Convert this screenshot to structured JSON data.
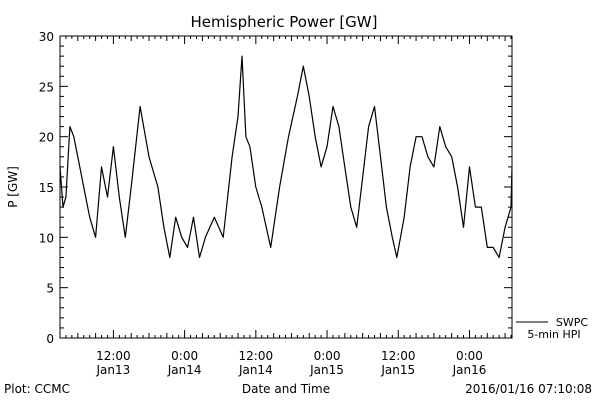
{
  "chart_data": {
    "type": "line",
    "title": "Hemispheric Power [GW]",
    "ylabel": "P [GW]",
    "xlabel": "Date and Time",
    "ylim": [
      0,
      30
    ],
    "xlim": [
      "2016-01-13T03:00",
      "2016-01-16T07:10"
    ],
    "y_ticks": [
      0,
      5,
      10,
      15,
      20,
      25,
      30
    ],
    "x_ticks": [
      {
        "x": "2016-01-13T12:00",
        "line1": "12:00",
        "line2": "Jan13"
      },
      {
        "x": "2016-01-14T00:00",
        "line1": "0:00",
        "line2": "Jan14"
      },
      {
        "x": "2016-01-14T12:00",
        "line1": "12:00",
        "line2": "Jan14"
      },
      {
        "x": "2016-01-15T00:00",
        "line1": "0:00",
        "line2": "Jan15"
      },
      {
        "x": "2016-01-15T12:00",
        "line1": "12:00",
        "line2": "Jan15"
      },
      {
        "x": "2016-01-16T00:00",
        "line1": "0:00",
        "line2": "Jan16"
      }
    ],
    "legend": {
      "placement": "bottom-right, outside plot",
      "entries": [
        "SWPC",
        "5-min HPI"
      ]
    },
    "grid": false,
    "series": [
      {
        "name": "SWPC",
        "color": "#000000",
        "points": [
          [
            "2016-01-13T03:00",
            17
          ],
          [
            "2016-01-13T03:30",
            13
          ],
          [
            "2016-01-13T04:00",
            14
          ],
          [
            "2016-01-13T04:40",
            21
          ],
          [
            "2016-01-13T05:20",
            20
          ],
          [
            "2016-01-13T06:00",
            18
          ],
          [
            "2016-01-13T07:00",
            15
          ],
          [
            "2016-01-13T08:00",
            12
          ],
          [
            "2016-01-13T09:00",
            10
          ],
          [
            "2016-01-13T10:00",
            17
          ],
          [
            "2016-01-13T11:00",
            14
          ],
          [
            "2016-01-13T12:00",
            19
          ],
          [
            "2016-01-13T13:00",
            14
          ],
          [
            "2016-01-13T14:00",
            10
          ],
          [
            "2016-01-13T15:00",
            15
          ],
          [
            "2016-01-13T16:30",
            23
          ],
          [
            "2016-01-13T18:00",
            18
          ],
          [
            "2016-01-13T19:30",
            15
          ],
          [
            "2016-01-13T20:30",
            11
          ],
          [
            "2016-01-13T21:30",
            8
          ],
          [
            "2016-01-13T22:30",
            12
          ],
          [
            "2016-01-13T23:30",
            10
          ],
          [
            "2016-01-14T00:30",
            9
          ],
          [
            "2016-01-14T01:30",
            12
          ],
          [
            "2016-01-14T02:30",
            8
          ],
          [
            "2016-01-14T03:30",
            10
          ],
          [
            "2016-01-14T05:00",
            12
          ],
          [
            "2016-01-14T06:30",
            10
          ],
          [
            "2016-01-14T08:00",
            18
          ],
          [
            "2016-01-14T09:00",
            22
          ],
          [
            "2016-01-14T09:40",
            28
          ],
          [
            "2016-01-14T10:20",
            20
          ],
          [
            "2016-01-14T11:00",
            19
          ],
          [
            "2016-01-14T12:00",
            15
          ],
          [
            "2016-01-14T13:00",
            13
          ],
          [
            "2016-01-14T14:30",
            9
          ],
          [
            "2016-01-14T16:00",
            15
          ],
          [
            "2016-01-14T17:30",
            20
          ],
          [
            "2016-01-14T19:00",
            24
          ],
          [
            "2016-01-14T20:00",
            27
          ],
          [
            "2016-01-14T21:00",
            24
          ],
          [
            "2016-01-14T22:00",
            20
          ],
          [
            "2016-01-14T23:00",
            17
          ],
          [
            "2016-01-15T00:00",
            19
          ],
          [
            "2016-01-15T01:00",
            23
          ],
          [
            "2016-01-15T02:00",
            21
          ],
          [
            "2016-01-15T03:00",
            17
          ],
          [
            "2016-01-15T04:00",
            13
          ],
          [
            "2016-01-15T05:00",
            11
          ],
          [
            "2016-01-15T06:00",
            16
          ],
          [
            "2016-01-15T07:00",
            21
          ],
          [
            "2016-01-15T08:00",
            23
          ],
          [
            "2016-01-15T09:00",
            18
          ],
          [
            "2016-01-15T10:00",
            13
          ],
          [
            "2016-01-15T11:00",
            10
          ],
          [
            "2016-01-15T11:45",
            8
          ],
          [
            "2016-01-15T13:00",
            12
          ],
          [
            "2016-01-15T14:00",
            17
          ],
          [
            "2016-01-15T15:00",
            20
          ],
          [
            "2016-01-15T16:00",
            20
          ],
          [
            "2016-01-15T17:00",
            18
          ],
          [
            "2016-01-15T18:00",
            17
          ],
          [
            "2016-01-15T19:00",
            21
          ],
          [
            "2016-01-15T20:00",
            19
          ],
          [
            "2016-01-15T21:00",
            18
          ],
          [
            "2016-01-15T22:00",
            15
          ],
          [
            "2016-01-15T23:00",
            11
          ],
          [
            "2016-01-16T00:00",
            17
          ],
          [
            "2016-01-16T01:00",
            13
          ],
          [
            "2016-01-16T02:00",
            13
          ],
          [
            "2016-01-16T03:00",
            9
          ],
          [
            "2016-01-16T04:00",
            9
          ],
          [
            "2016-01-16T05:00",
            8
          ],
          [
            "2016-01-16T06:00",
            11
          ],
          [
            "2016-01-16T07:00",
            13
          ],
          [
            "2016-01-16T07:10",
            17
          ]
        ]
      },
      {
        "name": "5-min HPI",
        "color": "#000000",
        "points": []
      }
    ]
  },
  "footer": {
    "left": "Plot: CCMC",
    "right": "2016/01/16 07:10:08"
  }
}
